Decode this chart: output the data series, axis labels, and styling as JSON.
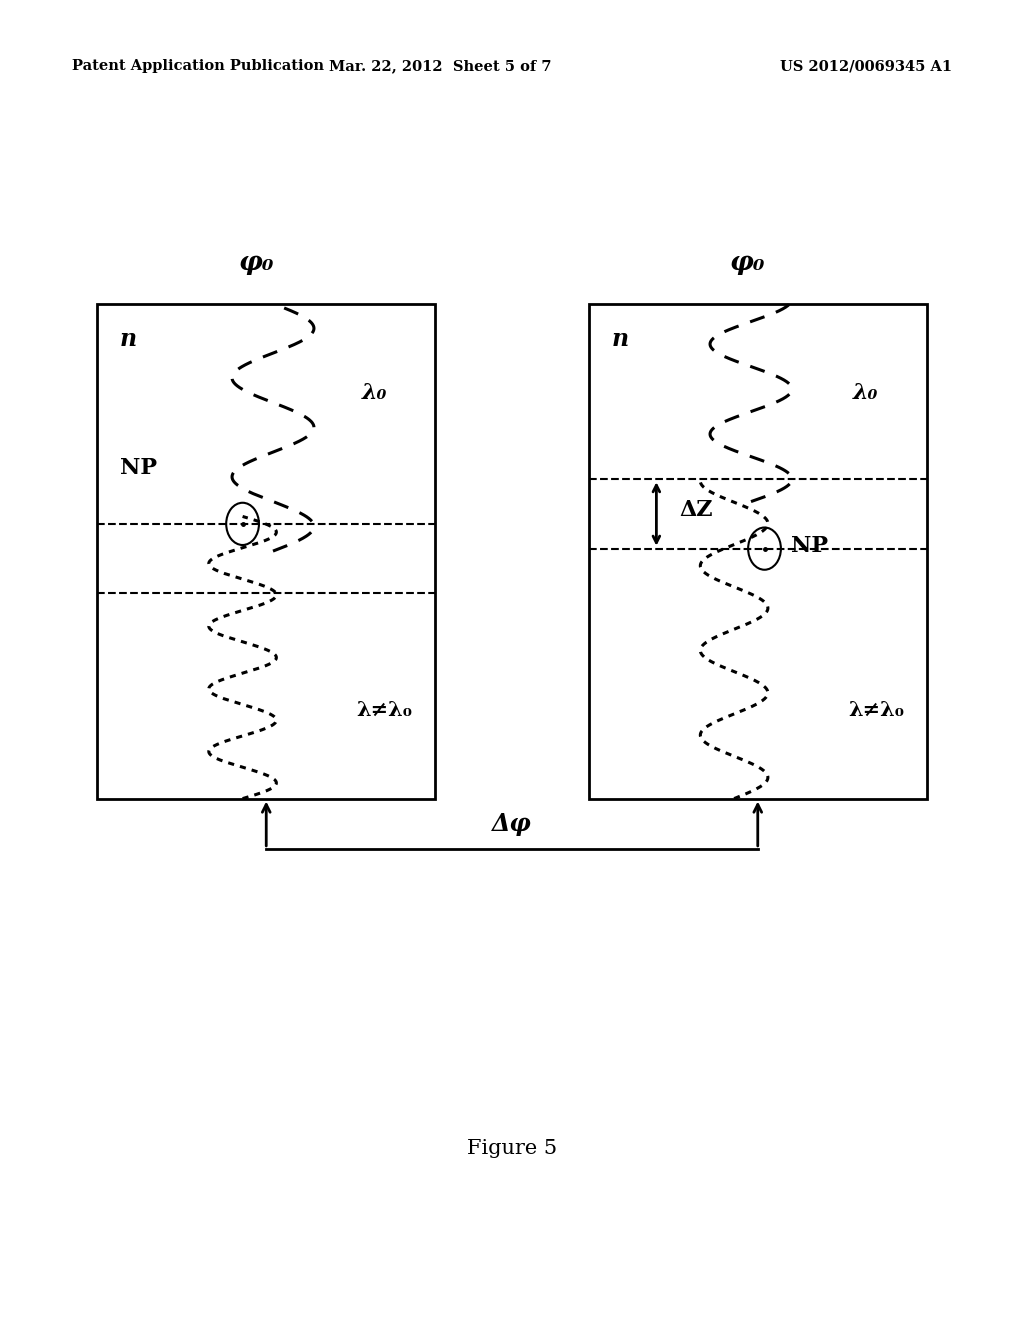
{
  "header_left": "Patent Application Publication",
  "header_center": "Mar. 22, 2012  Sheet 5 of 7",
  "header_right": "US 2012/0069345 A1",
  "figure_label": "Figure 5",
  "phi0_label": "φ₀",
  "n_label": "n",
  "NP_label": "NP",
  "lambda0_label": "λ₀",
  "lambda_ne_label": "λ≠λ₀",
  "deltaZ_label": "ΔZ",
  "deltaPhi_label": "Δφ",
  "background_color": "#ffffff",
  "lbx": 0.095,
  "lby": 0.395,
  "lbw": 0.33,
  "lbh": 0.375,
  "rbx": 0.575,
  "rby": 0.395,
  "rbw": 0.33,
  "rbh": 0.375
}
